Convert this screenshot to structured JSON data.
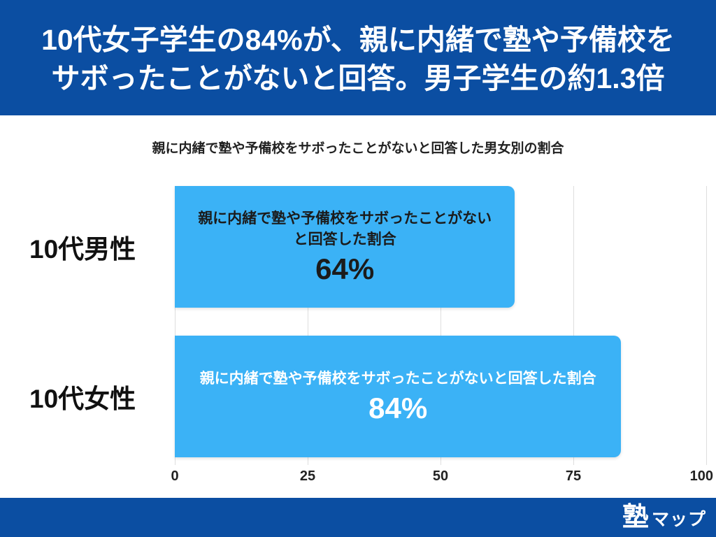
{
  "header": {
    "title_lines": [
      "10代女子学生の84%が、親に内緒で塾や予備校を",
      "サボったことがないと回答。男子学生の約1.3倍"
    ]
  },
  "chart_data": {
    "type": "bar",
    "orientation": "horizontal",
    "title": "親に内緒で塾や予備校をサボったことがないと回答した男女別の割合",
    "categories": [
      "10代男性",
      "10代女性"
    ],
    "series": [
      {
        "name": "親に内緒で塾や予備校をサボったことがないと回答した割合",
        "values": [
          64,
          84
        ]
      }
    ],
    "data_labels": [
      "64%",
      "84%"
    ],
    "xlim": [
      0,
      100
    ],
    "xticks": [
      0,
      25,
      50,
      75,
      100
    ],
    "xtick_labels": [
      "0",
      "25",
      "50",
      "75",
      "100"
    ],
    "grid": true,
    "colors": {
      "bar": "#3bb2f6",
      "grid": "#dedede",
      "data_label_text": [
        "#1b1b1b",
        "#ffffff"
      ]
    }
  },
  "theme": {
    "brand_blue": "#0b4ea2"
  },
  "footer": {
    "logo_kanji": "塾",
    "logo_kana": "マップ"
  }
}
